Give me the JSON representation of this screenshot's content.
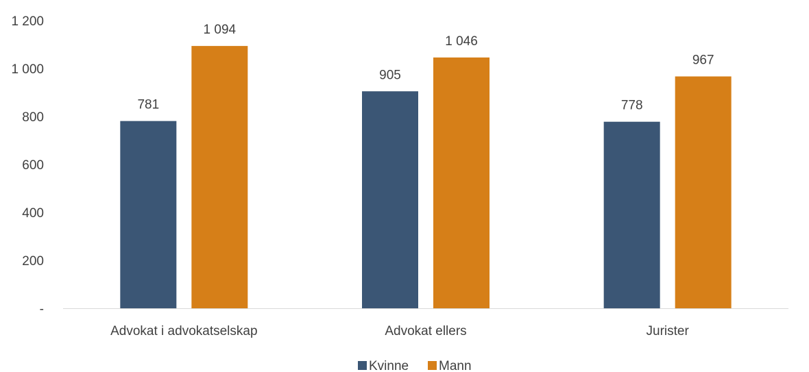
{
  "chart_data": {
    "type": "bar",
    "categories": [
      "Advokat i advokatselskap",
      "Advokat ellers",
      "Jurister"
    ],
    "series": [
      {
        "name": "Kvinne",
        "values": [
          781,
          905,
          778
        ],
        "labels": [
          "781",
          "905",
          "778"
        ],
        "color": "#3b5675"
      },
      {
        "name": "Mann",
        "values": [
          1094,
          1046,
          967
        ],
        "labels": [
          "1 094",
          "1 046",
          "967"
        ],
        "color": "#d67f18"
      }
    ],
    "y_ticks": [
      {
        "value": 0,
        "label": "-"
      },
      {
        "value": 200,
        "label": "200"
      },
      {
        "value": 400,
        "label": "400"
      },
      {
        "value": 600,
        "label": "600"
      },
      {
        "value": 800,
        "label": "800"
      },
      {
        "value": 1000,
        "label": "1 000"
      },
      {
        "value": 1200,
        "label": "1 200"
      }
    ],
    "ylim": [
      0,
      1200
    ],
    "grid": false,
    "legend_position": "bottom-center",
    "title": "",
    "xlabel": "",
    "ylabel": ""
  }
}
